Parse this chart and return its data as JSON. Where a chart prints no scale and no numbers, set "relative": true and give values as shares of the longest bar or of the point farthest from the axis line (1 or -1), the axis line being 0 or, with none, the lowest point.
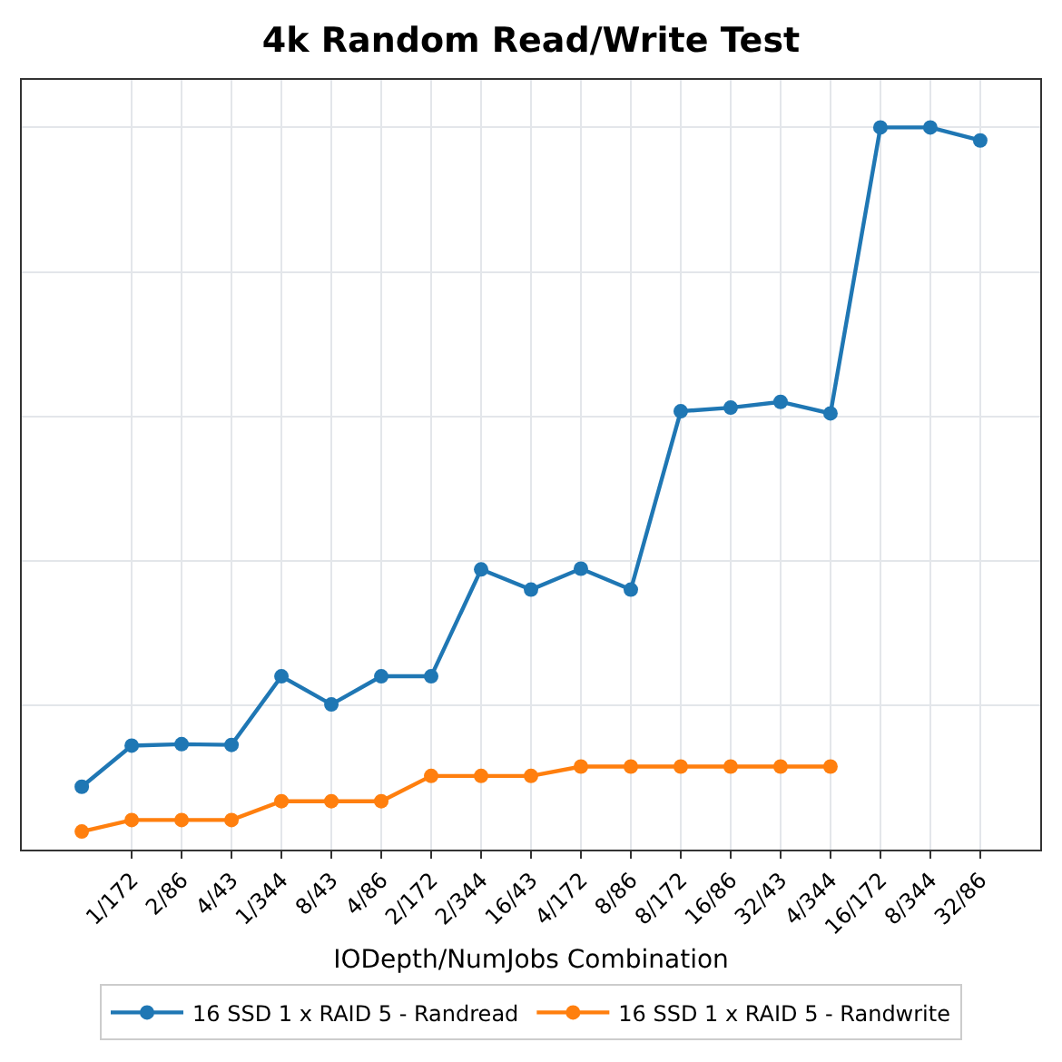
{
  "chart_data": {
    "type": "line",
    "title": "4k Random Read/Write Test",
    "xlabel": "IODepth/NumJobs Combination",
    "categories": [
      null,
      "1/172",
      "2/86",
      "4/43",
      "1/344",
      "8/43",
      "4/86",
      "2/172",
      "2/344",
      "16/43",
      "4/172",
      "8/86",
      "8/172",
      "16/86",
      "32/43",
      "4/344",
      "16/172",
      "8/344",
      "32/86"
    ],
    "series": [
      {
        "name": "16 SSD 1 x RAID 5 - Randread",
        "color": "#1f77b4",
        "values": [
          0.087,
          0.144,
          0.146,
          0.145,
          0.24,
          0.201,
          0.24,
          0.24,
          0.388,
          0.36,
          0.389,
          0.36,
          0.607,
          0.612,
          0.62,
          0.604,
          1,
          1,
          0.982
        ]
      },
      {
        "name": "16 SSD 1 x RAID 5 - Randwrite",
        "color": "#ff7f0e",
        "values": [
          0.025,
          0.041,
          0.041,
          0.041,
          0.067,
          0.067,
          0.067,
          0.102,
          0.102,
          0.102,
          0.115,
          0.115,
          0.115,
          0.115,
          0.115,
          0.115,
          null,
          null,
          null
        ]
      }
    ],
    "relative": true,
    "grid": true,
    "legend": "bottom",
    "marker": "circle"
  }
}
